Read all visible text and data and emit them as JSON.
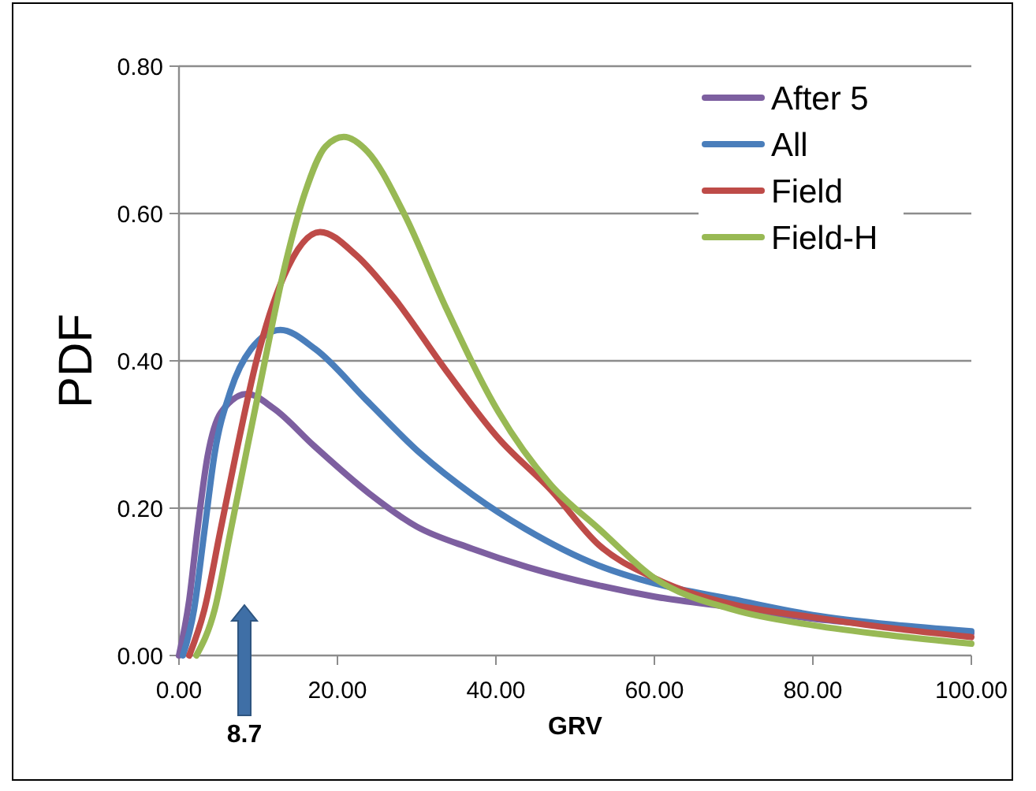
{
  "chart_data": {
    "type": "line",
    "xlabel": "GRV",
    "ylabel": "PDF",
    "xlim": [
      0,
      100
    ],
    "ylim": [
      0,
      0.8
    ],
    "xticks": [
      {
        "value": 0,
        "label": "0.00"
      },
      {
        "value": 20,
        "label": "20.00"
      },
      {
        "value": 40,
        "label": "40.00"
      },
      {
        "value": 60,
        "label": "60.00"
      },
      {
        "value": 80,
        "label": "80.00"
      },
      {
        "value": 100,
        "label": "100.00"
      }
    ],
    "yticks": [
      {
        "value": 0,
        "label": "0.00"
      },
      {
        "value": 0.2,
        "label": "0.20"
      },
      {
        "value": 0.4,
        "label": "0.40"
      },
      {
        "value": 0.6,
        "label": "0.60"
      },
      {
        "value": 0.8,
        "label": "0.80"
      }
    ],
    "grid": "y",
    "legend": "top right",
    "marker": "none",
    "line_style": "solid",
    "annotations": [
      "8.7"
    ],
    "series": [
      {
        "name": "After 5",
        "color": "#7d5fa0",
        "x": [
          0,
          1.3,
          2.3,
          3.6,
          5.3,
          8.6,
          12,
          17,
          24,
          30,
          37,
          44,
          53,
          60,
          70,
          80,
          90,
          100
        ],
        "values": [
          0,
          0.076,
          0.168,
          0.27,
          0.33,
          0.355,
          0.335,
          0.285,
          0.22,
          0.175,
          0.145,
          0.12,
          0.095,
          0.08,
          0.065,
          0.05,
          0.04,
          0.03
        ]
      },
      {
        "name": "All",
        "color": "#4a7ebb",
        "x": [
          0.5,
          1.9,
          3.2,
          4.5,
          6.5,
          9.1,
          12.8,
          17.2,
          23.8,
          30.5,
          37.1,
          43.7,
          53,
          60,
          70,
          80,
          90,
          100
        ],
        "values": [
          0,
          0.062,
          0.168,
          0.274,
          0.359,
          0.416,
          0.442,
          0.416,
          0.345,
          0.274,
          0.218,
          0.172,
          0.122,
          0.098,
          0.076,
          0.055,
          0.042,
          0.033
        ]
      },
      {
        "name": "Field",
        "color": "#be4b48",
        "x": [
          1.3,
          3.2,
          5.2,
          7.2,
          9.8,
          13.2,
          17.8,
          22.4,
          27.1,
          33.7,
          40.3,
          46.9,
          53,
          60,
          70,
          80,
          90,
          100
        ],
        "values": [
          0,
          0.062,
          0.168,
          0.274,
          0.401,
          0.514,
          0.575,
          0.543,
          0.486,
          0.387,
          0.295,
          0.225,
          0.15,
          0.105,
          0.069,
          0.052,
          0.037,
          0.025
        ]
      },
      {
        "name": "Field-H",
        "color": "#98b954",
        "x": [
          2.2,
          4.5,
          6.5,
          8.6,
          10.6,
          13.2,
          15.9,
          18.5,
          20.8,
          23.8,
          28.4,
          33.7,
          40.3,
          46.9,
          53,
          60,
          70,
          80,
          90,
          100
        ],
        "values": [
          0,
          0.062,
          0.168,
          0.281,
          0.387,
          0.521,
          0.628,
          0.691,
          0.704,
          0.684,
          0.6,
          0.472,
          0.331,
          0.232,
          0.172,
          0.105,
          0.062,
          0.041,
          0.027,
          0.016
        ]
      }
    ]
  }
}
